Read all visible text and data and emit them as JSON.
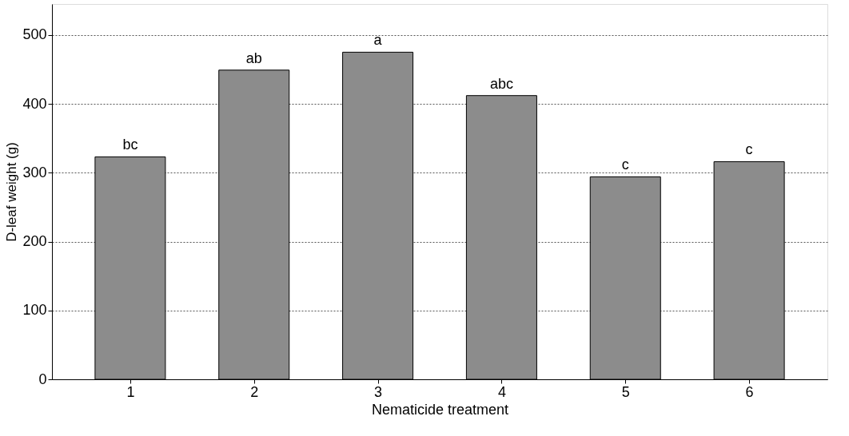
{
  "chart_data": {
    "type": "bar",
    "xlabel": "Nematicide treatment",
    "ylabel": "D-leaf weight (g)",
    "categories": [
      "1",
      "2",
      "3",
      "4",
      "5",
      "6"
    ],
    "values": [
      323,
      449,
      475,
      412,
      294,
      316
    ],
    "color": "#8c8c8c",
    "ylim": [
      0,
      545
    ],
    "yticks": [
      0,
      100,
      200,
      300,
      400,
      500
    ],
    "grid": "y",
    "annotations": [
      {
        "text": "bc",
        "x": "1",
        "y": 323
      },
      {
        "text": "ab",
        "x": "2",
        "y": 449
      },
      {
        "text": "a",
        "x": "3",
        "y": 475
      },
      {
        "text": "abc",
        "x": "4",
        "y": 412
      },
      {
        "text": "c",
        "x": "5",
        "y": 294
      },
      {
        "text": "c",
        "x": "6",
        "y": 316
      }
    ]
  }
}
